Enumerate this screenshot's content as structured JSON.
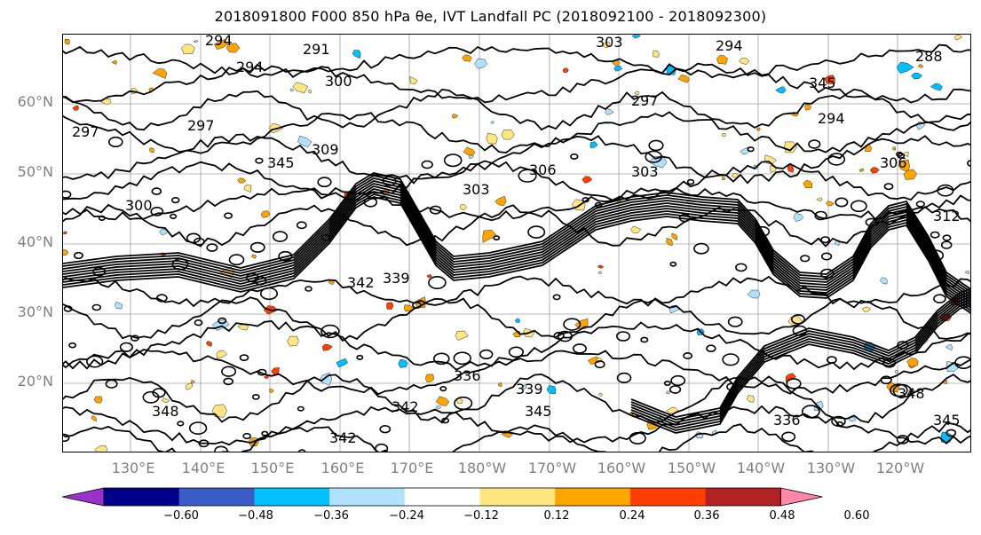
{
  "title": "2018091800 F000 850 hPa θe, IVT Landfall PC (2018092100 - 2018092300)",
  "map": {
    "lat_labels": [
      "60°N",
      "50°N",
      "40°N",
      "30°N",
      "20°N"
    ],
    "lon_labels": [
      "130°E",
      "140°E",
      "150°E",
      "160°E",
      "170°E",
      "180°W",
      "170°W",
      "160°W",
      "150°W",
      "140°W",
      "130°W",
      "120°W"
    ],
    "contour_labels": [
      "294",
      "294",
      "291",
      "300",
      "303",
      "294",
      "288",
      "297",
      "297",
      "300",
      "306",
      "303",
      "306",
      "303",
      "312",
      "342",
      "339",
      "336",
      "339",
      "345",
      "342",
      "348",
      "342",
      "336",
      "345",
      "348",
      "345",
      "345",
      "294",
      "297",
      "309"
    ]
  },
  "colorbar": {
    "ticks": [
      "−0.60",
      "−0.48",
      "−0.36",
      "−0.24",
      "−0.12",
      "0.12",
      "0.24",
      "0.36",
      "0.48",
      "0.60"
    ],
    "colors": [
      "#9932cc",
      "#00008b",
      "#3a5cc7",
      "#00bfff",
      "#b0e2ff",
      "#ffffff",
      "#ffe680",
      "#ffa500",
      "#ff3f00",
      "#b22222",
      "#ff88aa"
    ]
  }
}
